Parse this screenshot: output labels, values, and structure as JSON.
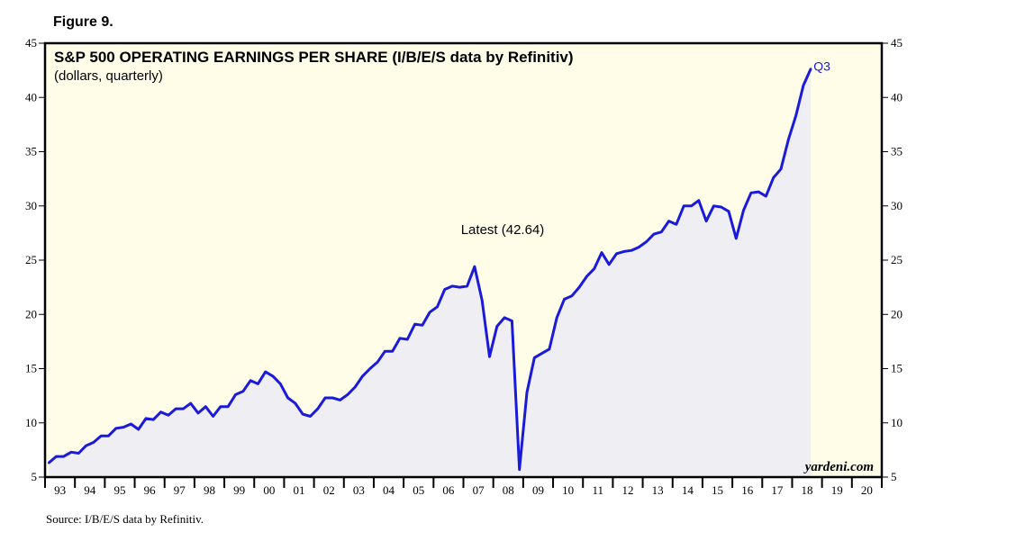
{
  "figure_label": "Figure 9.",
  "source_note": "Source: I/B/E/S data by Refinitiv.",
  "brand": "yardeni.com",
  "colors": {
    "background": "#fffde8",
    "fill": "#efeff3",
    "line": "#1a1adb"
  },
  "chart_data": {
    "type": "line",
    "title": "S&P 500 OPERATING EARNINGS PER SHARE (I/B/E/S data by Refinitiv)",
    "subtitle": "(dollars, quarterly)",
    "ylim": [
      5,
      45
    ],
    "yticks": [
      5,
      10,
      15,
      20,
      25,
      30,
      35,
      40,
      45
    ],
    "xlim": [
      1993,
      2021
    ],
    "xtick_labels": [
      "93",
      "94",
      "95",
      "96",
      "97",
      "98",
      "99",
      "00",
      "01",
      "02",
      "03",
      "04",
      "05",
      "06",
      "07",
      "08",
      "09",
      "10",
      "11",
      "12",
      "13",
      "14",
      "15",
      "16",
      "17",
      "18",
      "19",
      "20"
    ],
    "annotation": "Latest (42.64)",
    "end_label": "Q3",
    "grid": false,
    "legend": "none",
    "series": [
      {
        "x": [
          1993.125,
          1993.375,
          1993.625,
          1993.875,
          1994.125,
          1994.375,
          1994.625,
          1994.875,
          1995.125,
          1995.375,
          1995.625,
          1995.875,
          1996.125,
          1996.375,
          1996.625,
          1996.875,
          1997.125,
          1997.375,
          1997.625,
          1997.875,
          1998.125,
          1998.375,
          1998.625,
          1998.875,
          1999.125,
          1999.375,
          1999.625,
          1999.875,
          2000.125,
          2000.375,
          2000.625,
          2000.875,
          2001.125,
          2001.375,
          2001.625,
          2001.875,
          2002.125,
          2002.375,
          2002.625,
          2002.875,
          2003.125,
          2003.375,
          2003.625,
          2003.875,
          2004.125,
          2004.375,
          2004.625,
          2004.875,
          2005.125,
          2005.375,
          2005.625,
          2005.875,
          2006.125,
          2006.375,
          2006.625,
          2006.875,
          2007.125,
          2007.375,
          2007.625,
          2007.875,
          2008.125,
          2008.375,
          2008.625,
          2008.875,
          2009.125,
          2009.375,
          2009.625,
          2009.875,
          2010.125,
          2010.375,
          2010.625,
          2010.875,
          2011.125,
          2011.375,
          2011.625,
          2011.875,
          2012.125,
          2012.375,
          2012.625,
          2012.875,
          2013.125,
          2013.375,
          2013.625,
          2013.875,
          2014.125,
          2014.375,
          2014.625,
          2014.875,
          2015.125,
          2015.375,
          2015.625,
          2015.875,
          2016.125,
          2016.375,
          2016.625,
          2016.875,
          2017.125,
          2017.375,
          2017.625,
          2017.875,
          2018.125,
          2018.375,
          2018.625
        ],
        "values": [
          6.3,
          6.9,
          6.9,
          7.3,
          7.2,
          7.9,
          8.2,
          8.8,
          8.8,
          9.5,
          9.6,
          9.9,
          9.4,
          10.4,
          10.3,
          11.0,
          10.7,
          11.3,
          11.3,
          11.8,
          10.9,
          11.5,
          10.6,
          11.5,
          11.5,
          12.6,
          12.9,
          13.9,
          13.6,
          14.7,
          14.3,
          13.6,
          12.3,
          11.8,
          10.8,
          10.6,
          11.3,
          12.3,
          12.3,
          12.1,
          12.6,
          13.3,
          14.3,
          15.0,
          15.6,
          16.6,
          16.6,
          17.8,
          17.7,
          19.1,
          19.0,
          20.2,
          20.7,
          22.3,
          22.6,
          22.5,
          22.6,
          24.4,
          21.3,
          16.1,
          18.9,
          19.7,
          19.4,
          5.7,
          12.8,
          16.0,
          16.4,
          16.8,
          19.7,
          21.4,
          21.7,
          22.5,
          23.5,
          24.2,
          25.7,
          24.6,
          25.6,
          25.8,
          25.9,
          26.2,
          26.7,
          27.4,
          27.6,
          28.6,
          28.3,
          30.0,
          30.0,
          30.5,
          28.6,
          30.0,
          29.9,
          29.5,
          27.0,
          29.6,
          31.2,
          31.3,
          30.9,
          32.6,
          33.4,
          36.1,
          38.3,
          41.1,
          42.64
        ]
      }
    ]
  }
}
